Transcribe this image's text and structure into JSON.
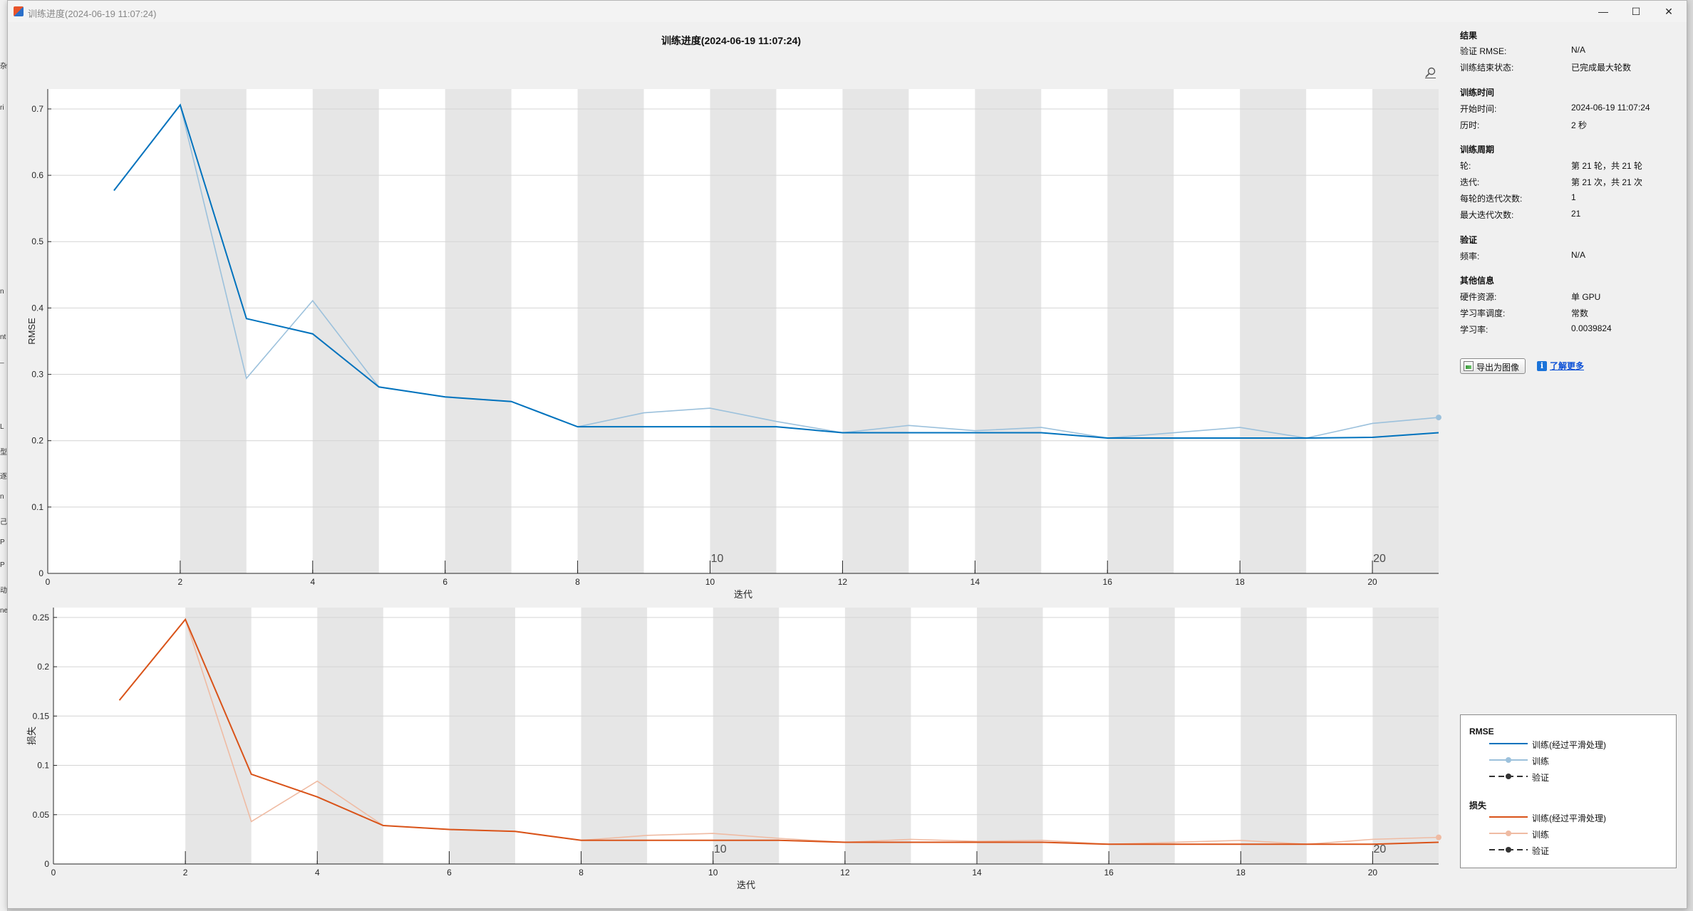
{
  "window": {
    "title": "训练进度(2024-06-19 11:07:24)",
    "minimize_glyph": "—",
    "maximize_glyph": "☐",
    "close_glyph": "✕"
  },
  "left_strip_glyphs": [
    "杂",
    "ri",
    "n",
    "nt",
    "_",
    "L",
    "型",
    "逐",
    "n",
    "己",
    "P",
    "P",
    "动",
    "ne"
  ],
  "figure": {
    "title": "训练进度(2024-06-19 11:07:24)",
    "zoom_icon": "magnifier-icon"
  },
  "colors": {
    "rmse_smoothed": "#0072bd",
    "rmse_train": "#9cc1dc",
    "loss_smoothed": "#d95319",
    "loss_train": "#efbba3",
    "epoch_band": "#e6e6e6",
    "validation": "#333333"
  },
  "chart_data": [
    {
      "type": "line",
      "title": "",
      "xlabel": "迭代",
      "ylabel": "RMSE",
      "xlim": [
        0,
        21
      ],
      "ylim": [
        0,
        0.73
      ],
      "xticks": [
        0,
        2,
        4,
        6,
        8,
        10,
        12,
        14,
        16,
        18,
        20
      ],
      "xtick_labels": [
        "0",
        "2",
        "4",
        "6",
        "8",
        "10",
        "12",
        "14",
        "16",
        "18",
        "20"
      ],
      "yticks": [
        0,
        0.1,
        0.2,
        0.3,
        0.4,
        0.5,
        0.6,
        0.7
      ],
      "ytick_labels": [
        "0",
        "0.1",
        "0.2",
        "0.3",
        "0.4",
        "0.5",
        "0.6",
        "0.7"
      ],
      "epoch_labels": [
        {
          "x": 10,
          "label": "10"
        },
        {
          "x": 20,
          "label": "20"
        }
      ],
      "grid": "y",
      "series": [
        {
          "name": "训练(经过平滑处理)",
          "x": [
            1,
            2,
            3,
            4,
            5,
            6,
            7,
            8,
            9,
            10,
            11,
            12,
            13,
            14,
            15,
            16,
            17,
            18,
            19,
            20,
            21
          ],
          "values": [
            0.577,
            0.706,
            0.384,
            0.361,
            0.281,
            0.266,
            0.259,
            0.221,
            0.221,
            0.221,
            0.221,
            0.212,
            0.212,
            0.212,
            0.212,
            0.204,
            0.204,
            0.204,
            0.204,
            0.205,
            0.212
          ]
        },
        {
          "name": "训练",
          "x": [
            1,
            2,
            3,
            4,
            5,
            6,
            7,
            8,
            9,
            10,
            11,
            12,
            13,
            14,
            15,
            16,
            17,
            18,
            19,
            20,
            21
          ],
          "values": [
            0.577,
            0.706,
            0.294,
            0.411,
            0.281,
            0.266,
            0.259,
            0.221,
            0.242,
            0.249,
            0.229,
            0.212,
            0.223,
            0.215,
            0.22,
            0.204,
            0.212,
            0.22,
            0.204,
            0.226,
            0.235
          ]
        }
      ]
    },
    {
      "type": "line",
      "title": "",
      "xlabel": "迭代",
      "ylabel": "损失",
      "xlim": [
        0,
        21
      ],
      "ylim": [
        0,
        0.26
      ],
      "xticks": [
        0,
        2,
        4,
        6,
        8,
        10,
        12,
        14,
        16,
        18,
        20
      ],
      "xtick_labels": [
        "0",
        "2",
        "4",
        "6",
        "8",
        "10",
        "12",
        "14",
        "16",
        "18",
        "20"
      ],
      "yticks": [
        0,
        0.05,
        0.1,
        0.15,
        0.2,
        0.25
      ],
      "ytick_labels": [
        "0",
        "0.05",
        "0.1",
        "0.15",
        "0.2",
        "0.25"
      ],
      "epoch_labels": [
        {
          "x": 10,
          "label": "10"
        },
        {
          "x": 20,
          "label": "20"
        }
      ],
      "grid": "y",
      "series": [
        {
          "name": "训练(经过平滑处理)",
          "x": [
            1,
            2,
            3,
            4,
            5,
            6,
            7,
            8,
            9,
            10,
            11,
            12,
            13,
            14,
            15,
            16,
            17,
            18,
            19,
            20,
            21
          ],
          "values": [
            0.166,
            0.248,
            0.091,
            0.068,
            0.039,
            0.035,
            0.033,
            0.024,
            0.024,
            0.024,
            0.024,
            0.022,
            0.022,
            0.022,
            0.022,
            0.02,
            0.02,
            0.02,
            0.02,
            0.02,
            0.022
          ]
        },
        {
          "name": "训练",
          "x": [
            1,
            2,
            3,
            4,
            5,
            6,
            7,
            8,
            9,
            10,
            11,
            12,
            13,
            14,
            15,
            16,
            17,
            18,
            19,
            20,
            21
          ],
          "values": [
            0.166,
            0.248,
            0.043,
            0.084,
            0.039,
            0.035,
            0.033,
            0.024,
            0.029,
            0.031,
            0.026,
            0.022,
            0.025,
            0.023,
            0.024,
            0.02,
            0.022,
            0.024,
            0.02,
            0.025,
            0.027
          ]
        }
      ]
    }
  ],
  "info": {
    "results": {
      "heading": "结果",
      "rows": [
        {
          "key": "验证 RMSE:",
          "value": "N/A"
        },
        {
          "key": "训练结束状态:",
          "value": "已完成最大轮数"
        }
      ]
    },
    "time": {
      "heading": "训练时间",
      "rows": [
        {
          "key": "开始时间:",
          "value": "2024-06-19 11:07:24"
        },
        {
          "key": "历时:",
          "value": "2 秒"
        }
      ]
    },
    "cycle": {
      "heading": "训练周期",
      "rows": [
        {
          "key": "轮:",
          "value": "第 21 轮，共 21 轮"
        },
        {
          "key": "迭代:",
          "value": "第 21 次，共 21 次"
        },
        {
          "key": "每轮的迭代次数:",
          "value": "1"
        },
        {
          "key": "最大迭代次数:",
          "value": "21"
        }
      ]
    },
    "validation": {
      "heading": "验证",
      "rows": [
        {
          "key": "频率:",
          "value": "N/A"
        }
      ]
    },
    "other": {
      "heading": "其他信息",
      "rows": [
        {
          "key": "硬件资源:",
          "value": "单 GPU"
        },
        {
          "key": "学习率调度:",
          "value": "常数"
        },
        {
          "key": "学习率:",
          "value": "0.0039824"
        }
      ]
    }
  },
  "actions": {
    "export_label": "导出为图像",
    "learn_more_label": "了解更多",
    "info_glyph": "i"
  },
  "legend": {
    "rmse_heading": "RMSE",
    "loss_heading": "损失",
    "smoothed_label": "训练(经过平滑处理)",
    "train_label": "训练",
    "validation_label": "验证"
  }
}
